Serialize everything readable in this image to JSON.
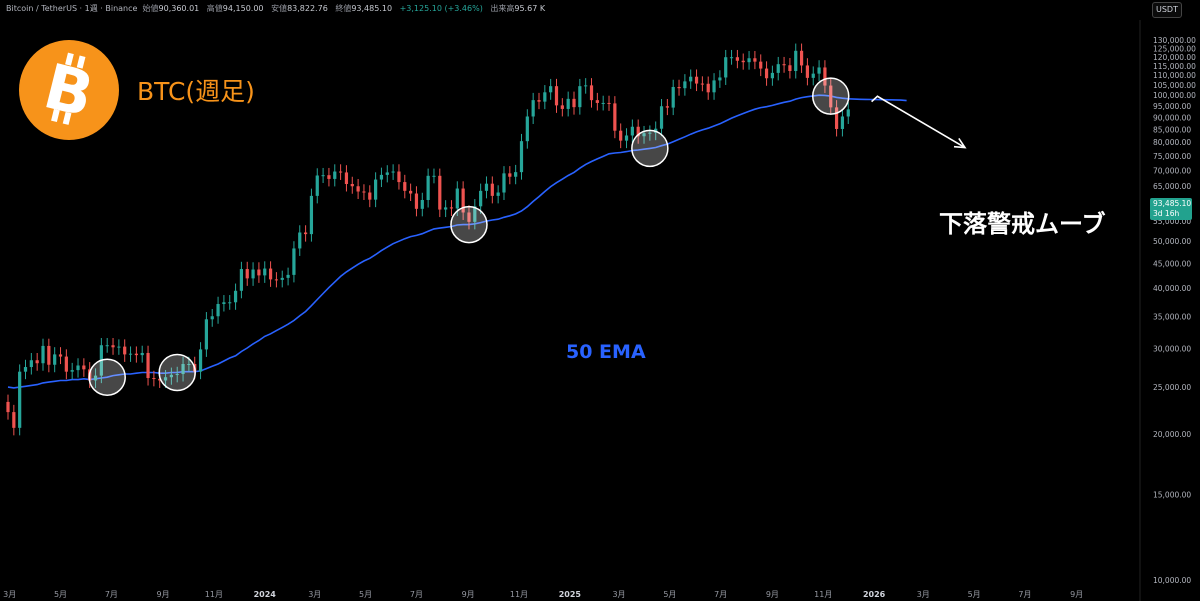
{
  "header": {
    "symbol": "Bitcoin / TetherUS · 1週 · Binance",
    "open_label": "始値",
    "open": "90,360.01",
    "high_label": "高値",
    "high": "94,150.00",
    "low_label": "安値",
    "low": "83,822.76",
    "close_label": "終値",
    "close": "93,485.10",
    "change": "+3,125.10 (+3.46%)",
    "volume_label": "出来高",
    "volume": "95.67 K"
  },
  "currency": "USDT",
  "overlay": {
    "title": "BTC(週足)",
    "ema_label": "50 EMA",
    "warning": "下落警戒ムーブ"
  },
  "price_tag": {
    "price": "93,485.10",
    "countdown": "3d 16h"
  },
  "colors": {
    "up": "#26a69a",
    "down": "#ef5350",
    "ema": "#2962ff",
    "logo": "#f7931a",
    "background": "#000000"
  },
  "chart_data": {
    "type": "candlestick",
    "title": "",
    "y_scale": "log",
    "ylim": [
      10000,
      130000
    ],
    "y_ticks": [
      "130,000.00",
      "125,000.00",
      "120,000.00",
      "115,000.00",
      "110,000.00",
      "105,000.00",
      "100,000.00",
      "95,000.00",
      "90,000.00",
      "85,000.00",
      "80,000.00",
      "75,000.00",
      "70,000.00",
      "65,000.00",
      "60,000.00",
      "55,000.00",
      "50,000.00",
      "45,000.00",
      "40,000.00",
      "35,000.00",
      "30,000.00",
      "25,000.00",
      "20,000.00",
      "15,000.00",
      "10,000.00"
    ],
    "x_ticks": [
      "3月",
      "5月",
      "7月",
      "9月",
      "11月",
      "2024",
      "3月",
      "5月",
      "7月",
      "9月",
      "11月",
      "2025",
      "3月",
      "5月",
      "7月",
      "9月",
      "11月",
      "2026",
      "3月",
      "5月",
      "7月",
      "9月"
    ],
    "x_range": [
      "2023-02-27",
      "2026-10-05"
    ],
    "series": [
      {
        "name": "",
        "kind": "ohlc_weekly",
        "dates": [
          "2023-02-27",
          "2023-03-06",
          "2023-03-13",
          "2023-03-20",
          "2023-03-27",
          "2023-04-03",
          "2023-04-10",
          "2023-04-17",
          "2023-04-24",
          "2023-05-01",
          "2023-05-08",
          "2023-05-15",
          "2023-05-22",
          "2023-05-29",
          "2023-06-05",
          "2023-06-12",
          "2023-06-19",
          "2023-06-26",
          "2023-07-03",
          "2023-07-10",
          "2023-07-17",
          "2023-07-24",
          "2023-07-31",
          "2023-08-07",
          "2023-08-14",
          "2023-08-21",
          "2023-08-28",
          "2023-09-04",
          "2023-09-11",
          "2023-09-18",
          "2023-09-25",
          "2023-10-02",
          "2023-10-09",
          "2023-10-16",
          "2023-10-23",
          "2023-10-30",
          "2023-11-06",
          "2023-11-13",
          "2023-11-20",
          "2023-11-27",
          "2023-12-04",
          "2023-12-11",
          "2023-12-18",
          "2023-12-25",
          "2024-01-01",
          "2024-01-08",
          "2024-01-15",
          "2024-01-22",
          "2024-01-29",
          "2024-02-05",
          "2024-02-12",
          "2024-02-19",
          "2024-02-26",
          "2024-03-04",
          "2024-03-11",
          "2024-03-18",
          "2024-03-25",
          "2024-04-01",
          "2024-04-08",
          "2024-04-15",
          "2024-04-22",
          "2024-04-29",
          "2024-05-06",
          "2024-05-13",
          "2024-05-20",
          "2024-05-27",
          "2024-06-03",
          "2024-06-10",
          "2024-06-17",
          "2024-06-24",
          "2024-07-01",
          "2024-07-08",
          "2024-07-15",
          "2024-07-22",
          "2024-07-29",
          "2024-08-05",
          "2024-08-12",
          "2024-08-19",
          "2024-08-26",
          "2024-09-02",
          "2024-09-09",
          "2024-09-16",
          "2024-09-23",
          "2024-09-30",
          "2024-10-07",
          "2024-10-14",
          "2024-10-21",
          "2024-10-28",
          "2024-11-04",
          "2024-11-11",
          "2024-11-18",
          "2024-11-25",
          "2024-12-02",
          "2024-12-09",
          "2024-12-16",
          "2024-12-23",
          "2024-12-30",
          "2025-01-06",
          "2025-01-13",
          "2025-01-20",
          "2025-01-27",
          "2025-02-03",
          "2025-02-10",
          "2025-02-17",
          "2025-02-24",
          "2025-03-03",
          "2025-03-10",
          "2025-03-17",
          "2025-03-24",
          "2025-03-31",
          "2025-04-07",
          "2025-04-14",
          "2025-04-21",
          "2025-04-28",
          "2025-05-05",
          "2025-05-12",
          "2025-05-19",
          "2025-05-26",
          "2025-06-02",
          "2025-06-09",
          "2025-06-16",
          "2025-06-23",
          "2025-06-30",
          "2025-07-07",
          "2025-07-14",
          "2025-07-21",
          "2025-07-28",
          "2025-08-04",
          "2025-08-11",
          "2025-08-18",
          "2025-08-25",
          "2025-09-01",
          "2025-09-08",
          "2025-09-15",
          "2025-09-22",
          "2025-09-29",
          "2025-10-06",
          "2025-10-13",
          "2025-10-20",
          "2025-10-27",
          "2025-11-03",
          "2025-11-10",
          "2025-11-17",
          "2025-11-24",
          "2025-12-01"
        ],
        "close": [
          22200,
          20600,
          26900,
          27500,
          28400,
          28000,
          30400,
          27800,
          29200,
          28900,
          26900,
          27100,
          27700,
          27200,
          25800,
          26400,
          30500,
          30500,
          30200,
          30300,
          29200,
          29300,
          29100,
          29400,
          26100,
          26000,
          25800,
          26200,
          26500,
          26600,
          27900,
          27900,
          26900,
          29900,
          34500,
          35000,
          37100,
          37400,
          37400,
          39500,
          43800,
          41900,
          43700,
          42500,
          43900,
          41700,
          41600,
          42000,
          42600,
          48300,
          52100,
          51700,
          62000,
          68300,
          68400,
          67200,
          69600,
          69300,
          65600,
          64900,
          63300,
          63000,
          60900,
          67000,
          68500,
          69300,
          69600,
          66200,
          63500,
          62700,
          58300,
          60800,
          68200,
          68200,
          58100,
          58700,
          58400,
          64200,
          57300,
          54800,
          59000,
          63500,
          65700,
          62000,
          63000,
          69000,
          67900,
          69400,
          80400,
          90400,
          97700,
          97000,
          101400,
          104400,
          95300,
          93700,
          98300,
          94500,
          104400,
          104800,
          97700,
          96400,
          96400,
          96200,
          84500,
          80600,
          82600,
          86100,
          82300,
          83500,
          83700,
          85300,
          94900,
          94300,
          104000,
          103400,
          106800,
          109200,
          105700,
          105600,
          101400,
          107300,
          108800,
          119800,
          119800,
          117800,
          117000,
          119200,
          117300,
          113500,
          108400,
          111200,
          115900,
          115300,
          112200,
          123500,
          115200,
          108600,
          110800,
          114100,
          104700,
          94400,
          85200,
          90400,
          93500
        ],
        "ema50": [
          25000,
          24900,
          25000,
          25100,
          25200,
          25300,
          25500,
          25600,
          25700,
          25800,
          25800,
          25900,
          25900,
          26000,
          25900,
          26000,
          26100,
          26200,
          26400,
          26500,
          26600,
          26600,
          26700,
          26800,
          26800,
          26800,
          26700,
          26700,
          26800,
          26800,
          26900,
          26900,
          26900,
          27000,
          27300,
          27600,
          27900,
          28300,
          28700,
          29000,
          29600,
          30100,
          30700,
          31200,
          31800,
          32200,
          32700,
          33200,
          33700,
          34300,
          35100,
          35800,
          36800,
          37900,
          39000,
          40100,
          41200,
          42300,
          43200,
          44000,
          44800,
          45500,
          46100,
          46900,
          47800,
          48600,
          49400,
          50000,
          50600,
          51100,
          51400,
          51800,
          52400,
          53000,
          53200,
          53400,
          53600,
          54000,
          54100,
          54100,
          54300,
          54600,
          55000,
          55300,
          55500,
          56000,
          56400,
          56900,
          57700,
          58900,
          60400,
          61800,
          63300,
          64800,
          66000,
          67100,
          68300,
          69300,
          70700,
          72000,
          73000,
          73900,
          74800,
          75700,
          76000,
          76200,
          76500,
          76900,
          77100,
          77400,
          77700,
          78000,
          78700,
          79300,
          80200,
          81100,
          82100,
          83100,
          84000,
          84800,
          85500,
          86400,
          87300,
          88500,
          89700,
          90700,
          91700,
          92700,
          93600,
          94300,
          94700,
          95300,
          96000,
          96700,
          97200,
          98200,
          98900,
          99300,
          99700,
          100000,
          99900,
          99600,
          99000,
          98600,
          98300
        ]
      },
      {
        "name": "",
        "kind": "ema_projection",
        "dates": [
          "2025-12-08",
          "2025-12-15",
          "2025-12-22",
          "2025-12-29",
          "2026-01-05",
          "2026-01-12",
          "2026-01-19",
          "2026-01-26",
          "2026-02-02",
          "2026-02-09"
        ],
        "values": [
          98200,
          98100,
          98050,
          98000,
          97950,
          97900,
          97850,
          97800,
          97700,
          97500
        ]
      }
    ],
    "annotations": {
      "circles_at": [
        "2023-06-26",
        "2023-09-18",
        "2024-09-02",
        "2025-04-07",
        "2025-11-10"
      ],
      "arrow": {
        "from_date": "2025-12-29",
        "from_value": 97000,
        "peak_date": "2026-01-05",
        "peak_value": 99500,
        "to_date": "2026-04-20",
        "to_value": 78000
      }
    },
    "grid": false,
    "legend": "none"
  }
}
